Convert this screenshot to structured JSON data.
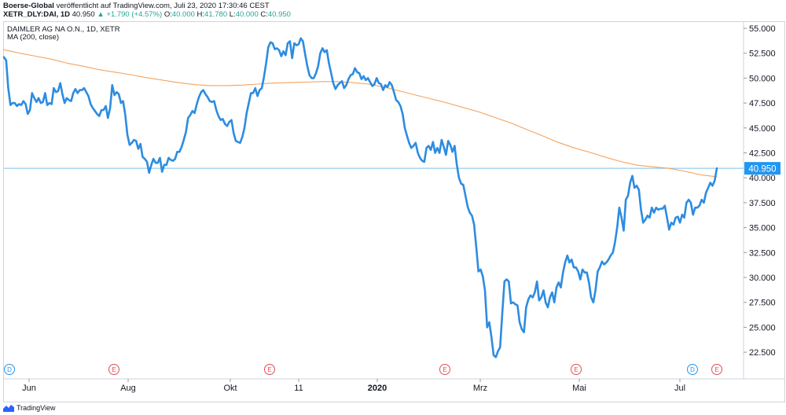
{
  "header": {
    "publisher": "Boerse-Global",
    "published_text": "veröffentlicht auf TradingView.com, Juli 23, 2020 17:30:46 CEST",
    "symbol": "XETR_DLY:DAI, 1D",
    "last": "40.950",
    "change": "+1.790 (+4.57%)",
    "open_label": "O:",
    "open": "40.000",
    "high_label": "H:",
    "high": "41.780",
    "low_label": "L:",
    "low": "40.000",
    "close_label": "C:",
    "close": "40.950"
  },
  "legend": {
    "title": "DAIMLER AG NA O.N., 1D, XETR",
    "indicator": "MA (200, close)"
  },
  "footer": {
    "brand": "TradingView",
    "logo_icon": "tradingview-logo-icon"
  },
  "colors": {
    "price": "#2d8ce0",
    "ma": "#f5a35c",
    "last_line": "#7dc1e8",
    "last_label_bg": "#2196f3",
    "up": "#26a69a",
    "dividend": "#2196f3",
    "earnings": "#e04e55"
  },
  "chart_data": {
    "type": "line",
    "y_axis": {
      "position": "right",
      "min": 20.0,
      "max": 55.5,
      "ticks": [
        "55.000",
        "52.500",
        "50.000",
        "47.500",
        "45.000",
        "42.500",
        "40.000",
        "37.500",
        "35.000",
        "32.500",
        "30.000",
        "27.500",
        "25.000",
        "22.500"
      ]
    },
    "x_axis": {
      "labels": [
        "Jun",
        "Aug",
        "Okt",
        "11",
        "2020",
        "Mrz",
        "Mai",
        "Jul"
      ],
      "bold_labels": [
        "2020"
      ]
    },
    "last_value": 40.95,
    "last_value_label": "40.950",
    "series": [
      {
        "kind": "price",
        "values": [
          52.1,
          51.8,
          49.0,
          47.3,
          47.5,
          47.5,
          47.2,
          47.4,
          47.3,
          47.7,
          47.4,
          46.4,
          46.8,
          48.5,
          48.0,
          47.6,
          48.0,
          47.5,
          47.6,
          48.5,
          47.3,
          47.5,
          47.4,
          49.0,
          48.6,
          48.7,
          49.5,
          48.4,
          47.5,
          48.0,
          47.8,
          47.7,
          48.5,
          48.9,
          48.5,
          48.8,
          48.8,
          49.0,
          48.6,
          48.2,
          47.4,
          47.0,
          46.7,
          46.4,
          46.2,
          46.8,
          46.8,
          47.2,
          46.0,
          47.0,
          49.3,
          48.3,
          48.6,
          48.4,
          47.5,
          47.7,
          46.3,
          44.3,
          43.3,
          43.5,
          43.8,
          43.7,
          42.9,
          43.4,
          42.1,
          41.9,
          41.6,
          40.5,
          41.3,
          41.9,
          41.5,
          41.5,
          42.0,
          40.6,
          41.3,
          41.3,
          42.0,
          41.8,
          41.7,
          41.9,
          42.6,
          42.6,
          43.1,
          43.8,
          44.6,
          46.0,
          46.3,
          46.7,
          46.5,
          47.4,
          48.1,
          48.6,
          48.8,
          48.4,
          48.1,
          47.7,
          47.6,
          47.7,
          46.8,
          46.2,
          45.8,
          45.9,
          45.4,
          45.2,
          45.6,
          45.8,
          44.5,
          43.7,
          43.6,
          43.5,
          44.1,
          45.0,
          46.5,
          47.5,
          48.5,
          48.5,
          49.0,
          48.2,
          48.8,
          49.0,
          50.1,
          51.5,
          53.1,
          53.6,
          53.5,
          52.9,
          53.0,
          52.8,
          52.2,
          52.7,
          52.3,
          53.5,
          53.7,
          52.0,
          53.5,
          53.3,
          53.4,
          54.0,
          53.7,
          52.4,
          51.2,
          50.3,
          50.0,
          50.0,
          50.5,
          51.2,
          52.5,
          53.0,
          52.6,
          52.8,
          51.5,
          50.5,
          49.5,
          48.9,
          49.3,
          49.5,
          49.7,
          49.0,
          49.3,
          49.9,
          50.3,
          50.4,
          51.0,
          50.6,
          50.5,
          49.9,
          50.2,
          49.8,
          50.0,
          49.6,
          49.2,
          49.4,
          50.0,
          49.5,
          49.4,
          48.8,
          49.3,
          49.1,
          49.6,
          49.3,
          48.6,
          47.8,
          47.6,
          47.2,
          46.4,
          45.0,
          44.2,
          43.5,
          43.0,
          43.2,
          43.5,
          42.5,
          42.0,
          41.7,
          41.6,
          43.0,
          43.2,
          42.8,
          43.6,
          42.5,
          43.0,
          42.5,
          43.8,
          43.1,
          42.3,
          43.7,
          43.3,
          42.6,
          43.2,
          41.3,
          40.0,
          39.4,
          39.3,
          38.2,
          37.1,
          36.5,
          36.2,
          35.3,
          33.0,
          30.6,
          30.8,
          30.1,
          28.7,
          25.0,
          25.5,
          24.0,
          22.2,
          22.0,
          22.6,
          23.0,
          26.5,
          29.6,
          29.8,
          29.6,
          27.4,
          27.5,
          27.3,
          27.2,
          25.5,
          24.8,
          24.5,
          27.0,
          27.8,
          28.2,
          28.0,
          28.5,
          29.6,
          27.7,
          28.0,
          28.7,
          27.5,
          27.0,
          28.0,
          28.5,
          27.5,
          29.0,
          29.5,
          29.0,
          30.5,
          31.5,
          32.2,
          31.5,
          31.8,
          31.0,
          31.0,
          30.6,
          29.8,
          30.8,
          30.5,
          30.5,
          29.5,
          28.0,
          27.5,
          28.7,
          30.6,
          31.0,
          31.6,
          31.3,
          31.5,
          31.8,
          32.2,
          32.5,
          33.5,
          35.0,
          37.0,
          36.0,
          34.7,
          37.8,
          38.2,
          39.5,
          40.2,
          39.0,
          39.2,
          38.8,
          36.8,
          35.5,
          35.8,
          36.2,
          36.0,
          37.0,
          36.5,
          37.0,
          36.8,
          36.9,
          36.9,
          37.2,
          36.0,
          34.8,
          35.5,
          35.3,
          36.0,
          36.1,
          35.5,
          36.3,
          36.0,
          37.5,
          37.8,
          37.5,
          36.3,
          37.0,
          37.0,
          37.2,
          37.8,
          37.5,
          38.5,
          39.0,
          39.5,
          39.2,
          39.7,
          40.95
        ]
      },
      {
        "kind": "ma",
        "values": [
          52.85,
          52.5,
          52.2,
          51.9,
          51.5,
          51.2,
          50.85,
          50.6,
          50.35,
          50.05,
          49.8,
          49.55,
          49.35,
          49.25,
          49.25,
          49.3,
          49.4,
          49.5,
          49.55,
          49.6,
          49.65,
          49.65,
          49.55,
          49.4,
          49.1,
          48.7,
          48.3,
          47.9,
          47.5,
          47.05,
          46.6,
          46.05,
          45.5,
          44.85,
          44.2,
          43.55,
          43.0,
          42.55,
          42.05,
          41.6,
          41.25,
          41.1,
          40.95,
          40.65,
          40.3,
          40.1
        ]
      }
    ],
    "event_markers": [
      {
        "label": "D",
        "type": "dividend"
      },
      {
        "label": "E",
        "type": "earnings"
      },
      {
        "label": "E",
        "type": "earnings"
      },
      {
        "label": "E",
        "type": "earnings"
      },
      {
        "label": "E",
        "type": "earnings"
      },
      {
        "label": "D",
        "type": "dividend"
      },
      {
        "label": "E",
        "type": "earnings"
      }
    ]
  }
}
